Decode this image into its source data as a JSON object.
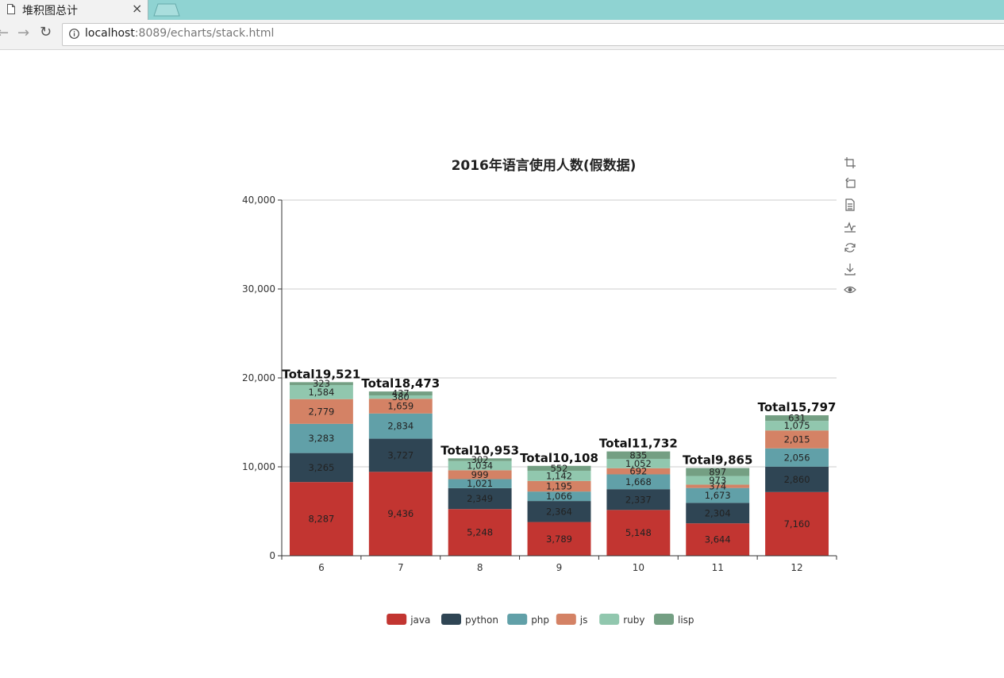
{
  "browser": {
    "tab_title": "堆积图总计",
    "tab_close": "×",
    "url_host": "localhost",
    "url_rest": ":8089/echarts/stack.html"
  },
  "toolbox": [
    "data-zoom-icon",
    "zoom-reset-icon",
    "data-view-icon",
    "line-chart-icon",
    "restore-icon",
    "download-icon",
    "eye-icon"
  ],
  "colors": {
    "tab_bar": "#8fd3d2",
    "axis": "#333333",
    "grid": "#cccccc"
  },
  "chart_data": {
    "type": "bar",
    "stacked": true,
    "title": "2016年语言使用人数(假数据)",
    "categories": [
      "6",
      "7",
      "8",
      "9",
      "10",
      "11",
      "12"
    ],
    "ylim": [
      0,
      40000
    ],
    "yticks": [
      0,
      10000,
      20000,
      30000,
      40000
    ],
    "grid": "horizontal",
    "legend_position": "bottom",
    "total_prefix": "Total",
    "series": [
      {
        "name": "java",
        "color": "#c23531",
        "values": [
          8287,
          9436,
          5248,
          3789,
          5148,
          3644,
          7160
        ]
      },
      {
        "name": "python",
        "color": "#2f4554",
        "values": [
          3265,
          3727,
          2349,
          2364,
          2337,
          2304,
          2860
        ]
      },
      {
        "name": "php",
        "color": "#61a0a8",
        "values": [
          3283,
          2834,
          1021,
          1066,
          1668,
          1673,
          2056
        ]
      },
      {
        "name": "js",
        "color": "#d48265",
        "values": [
          2779,
          1659,
          999,
          1195,
          692,
          374,
          2015
        ]
      },
      {
        "name": "ruby",
        "color": "#91c7ae",
        "values": [
          1584,
          380,
          1034,
          1142,
          1052,
          973,
          1075
        ]
      },
      {
        "name": "lisp",
        "color": "#749f83",
        "values": [
          323,
          437,
          302,
          552,
          835,
          897,
          631
        ]
      }
    ],
    "totals": [
      19521,
      18473,
      10953,
      10108,
      11732,
      9865,
      15797
    ]
  }
}
